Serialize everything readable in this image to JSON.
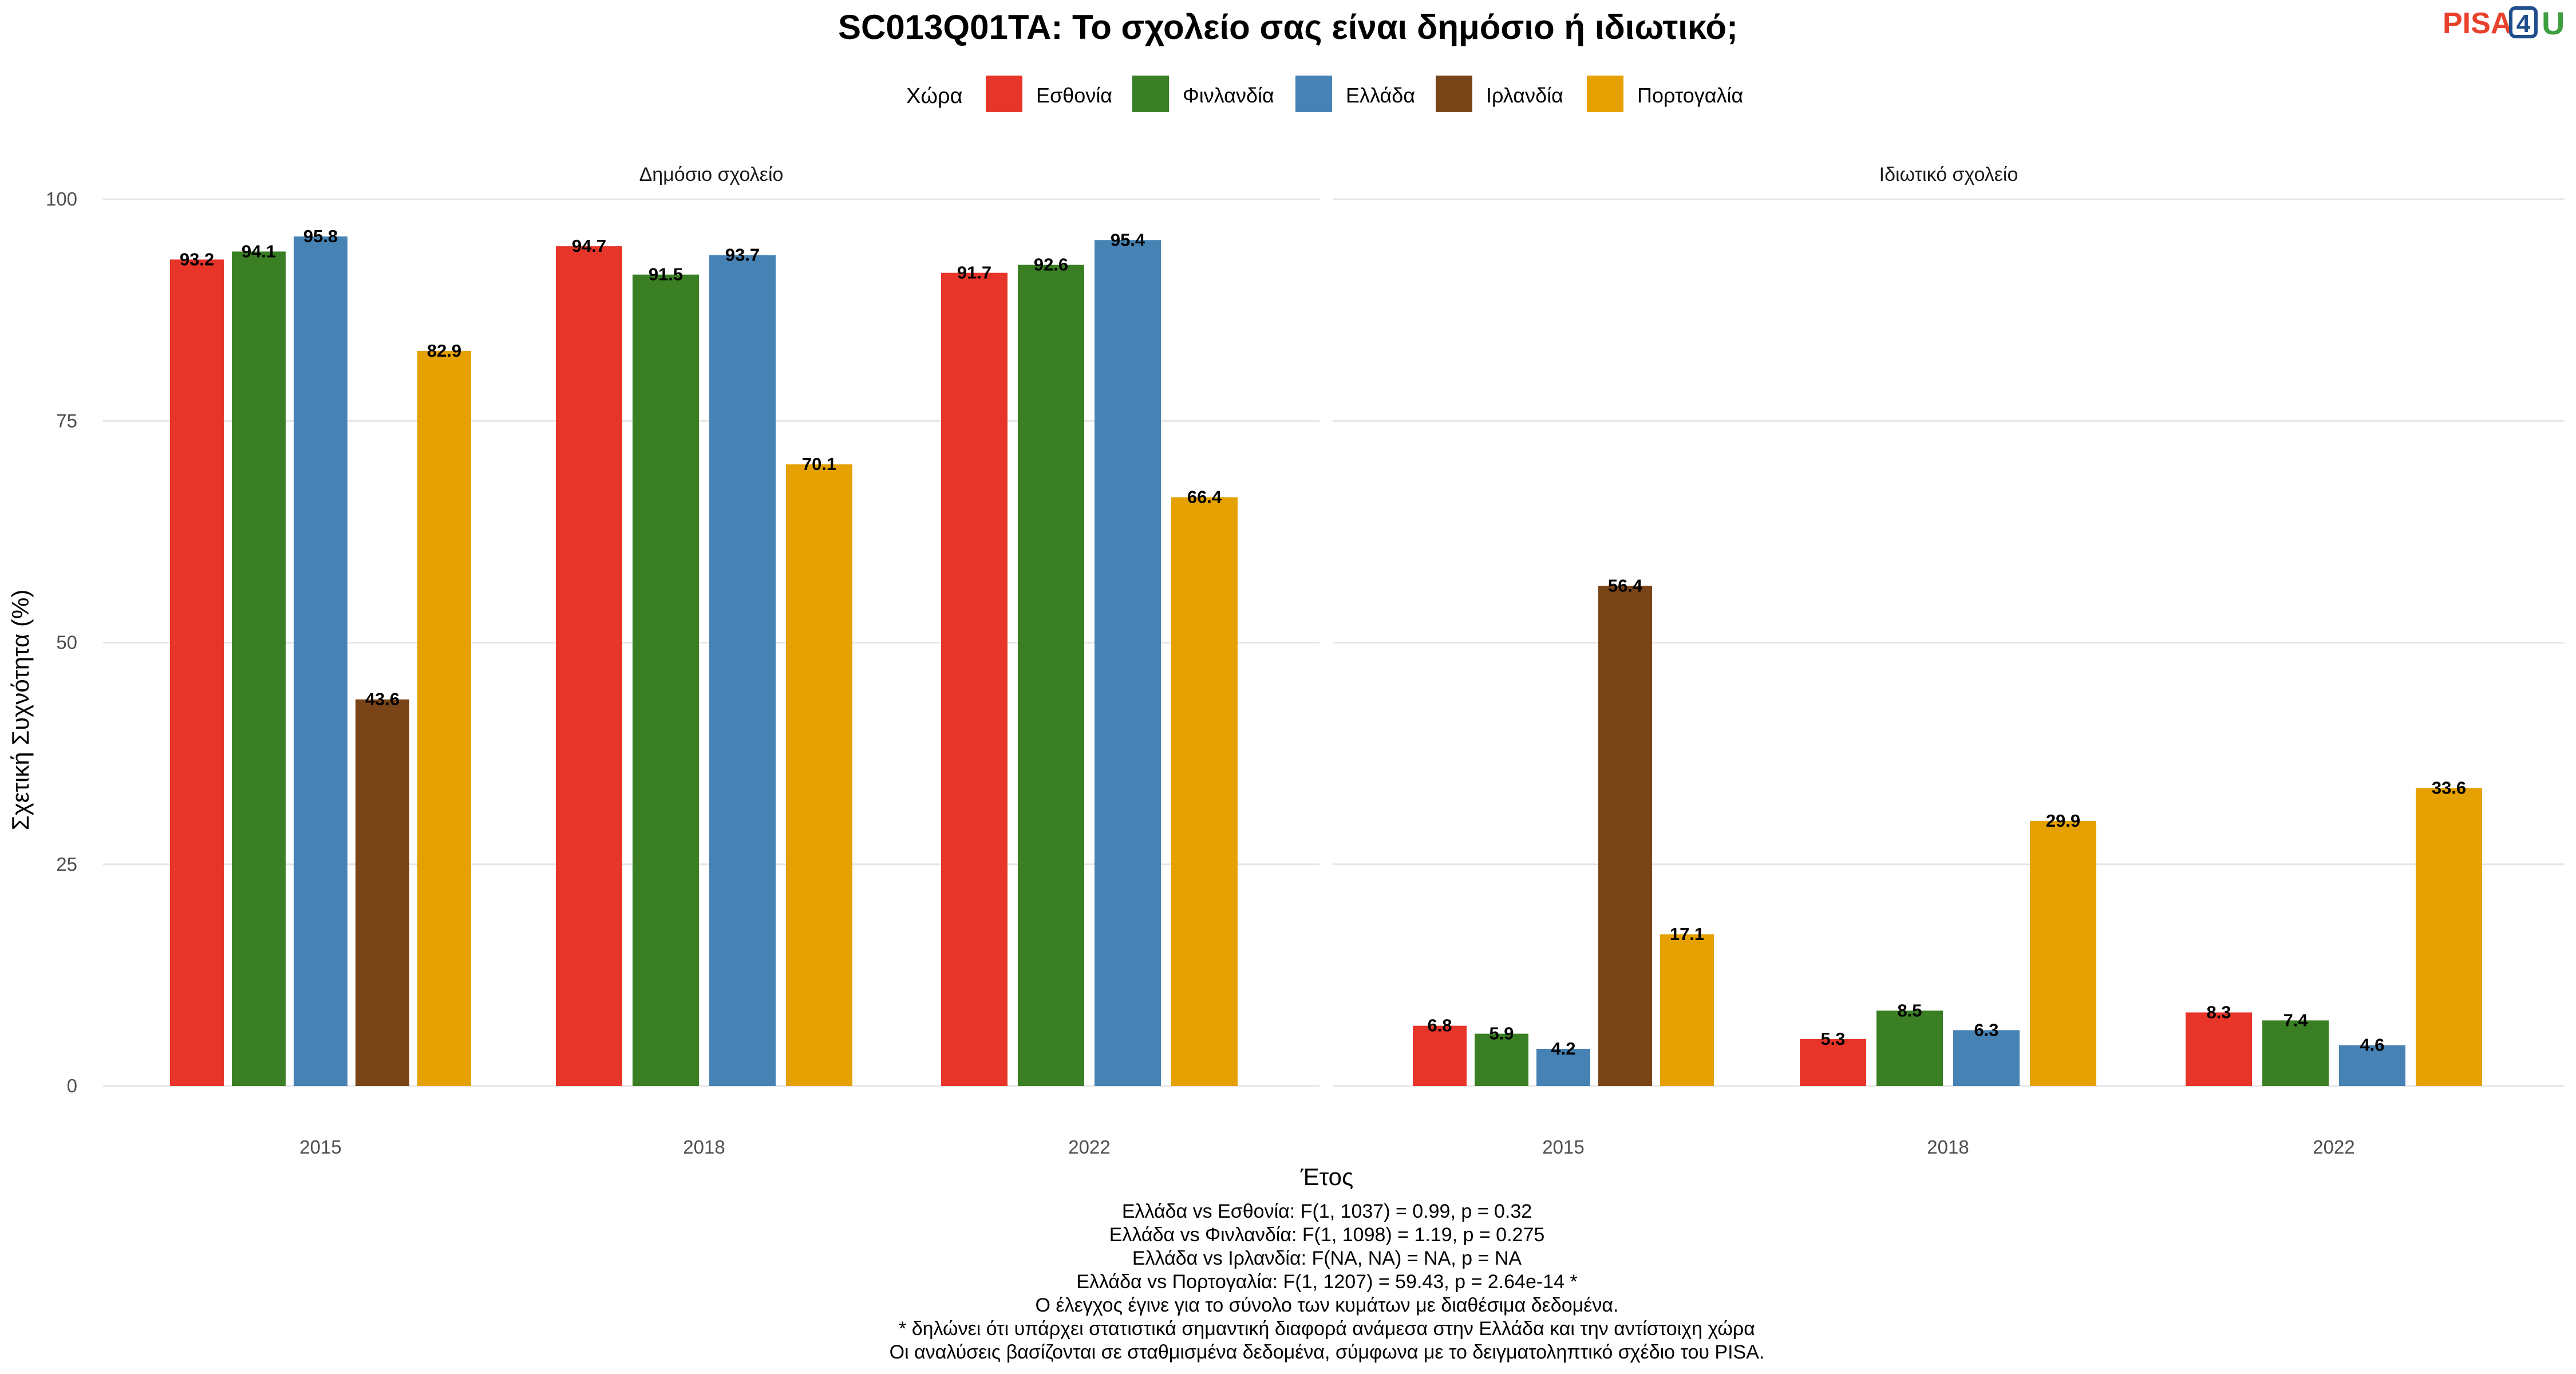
{
  "title": "SC013Q01TA: Το σχολείο σας είναι δημόσιο ή ιδιωτικό;",
  "logo": {
    "part1": "PISA",
    "part2": "4",
    "part3": "U"
  },
  "legend": {
    "title": "Χώρα",
    "items": [
      {
        "label": "Εσθονία",
        "color": "#E8352A"
      },
      {
        "label": "Φινλανδία",
        "color": "#3A7F24"
      },
      {
        "label": "Ελλάδα",
        "color": "#4682B4"
      },
      {
        "label": "Ιρλανδία",
        "color": "#7A4419"
      },
      {
        "label": "Πορτογαλία",
        "color": "#E5A101"
      }
    ]
  },
  "chart_data": {
    "type": "bar",
    "xlabel": "Έτος",
    "ylabel": "Σχετική Συχνότητα (%)",
    "ylim": [
      0,
      100
    ],
    "yticks": [
      0,
      25,
      50,
      75,
      100
    ],
    "categories": [
      "2015",
      "2018",
      "2022"
    ],
    "panels": [
      {
        "name": "Δημόσιο σχολείο",
        "series": [
          {
            "name": "Εσθονία",
            "values": [
              93.2,
              94.7,
              91.7
            ]
          },
          {
            "name": "Φινλανδία",
            "values": [
              94.1,
              91.5,
              92.6
            ]
          },
          {
            "name": "Ελλάδα",
            "values": [
              95.8,
              93.7,
              95.4
            ]
          },
          {
            "name": "Ιρλανδία",
            "values": [
              43.6,
              null,
              null
            ]
          },
          {
            "name": "Πορτογαλία",
            "values": [
              82.9,
              70.1,
              66.4
            ]
          }
        ]
      },
      {
        "name": "Ιδιωτικό σχολείο",
        "series": [
          {
            "name": "Εσθονία",
            "values": [
              6.8,
              5.3,
              8.3
            ]
          },
          {
            "name": "Φινλανδία",
            "values": [
              5.9,
              8.5,
              7.4
            ]
          },
          {
            "name": "Ελλάδα",
            "values": [
              4.2,
              6.3,
              4.6
            ]
          },
          {
            "name": "Ιρλανδία",
            "values": [
              56.4,
              null,
              null
            ]
          },
          {
            "name": "Πορτογαλία",
            "values": [
              17.1,
              29.9,
              33.6
            ]
          }
        ]
      }
    ],
    "grid": true,
    "legend_position": "top"
  },
  "footnotes": [
    "Ελλάδα vs Εσθονία: F(1, 1037) = 0.99, p = 0.32",
    "Ελλάδα vs Φινλανδία: F(1, 1098) = 1.19, p = 0.275",
    "Ελλάδα vs Ιρλανδία: F(NA, NA) = NA, p = NA",
    "Ελλάδα vs Πορτογαλία: F(1, 1207) = 59.43, p = 2.64e-14 *",
    "Ο έλεγχος έγινε για το σύνολο των κυμάτων με διαθέσιμα δεδομένα.",
    "* δηλώνει ότι υπάρχει στατιστικά σημαντική διαφορά ανάμεσα στην Ελλάδα και την αντίστοιχη χώρα",
    "Οι αναλύσεις βασίζονται σε σταθμισμένα δεδομένα, σύμφωνα με το δειγματοληπτικό σχέδιο του PISA."
  ]
}
